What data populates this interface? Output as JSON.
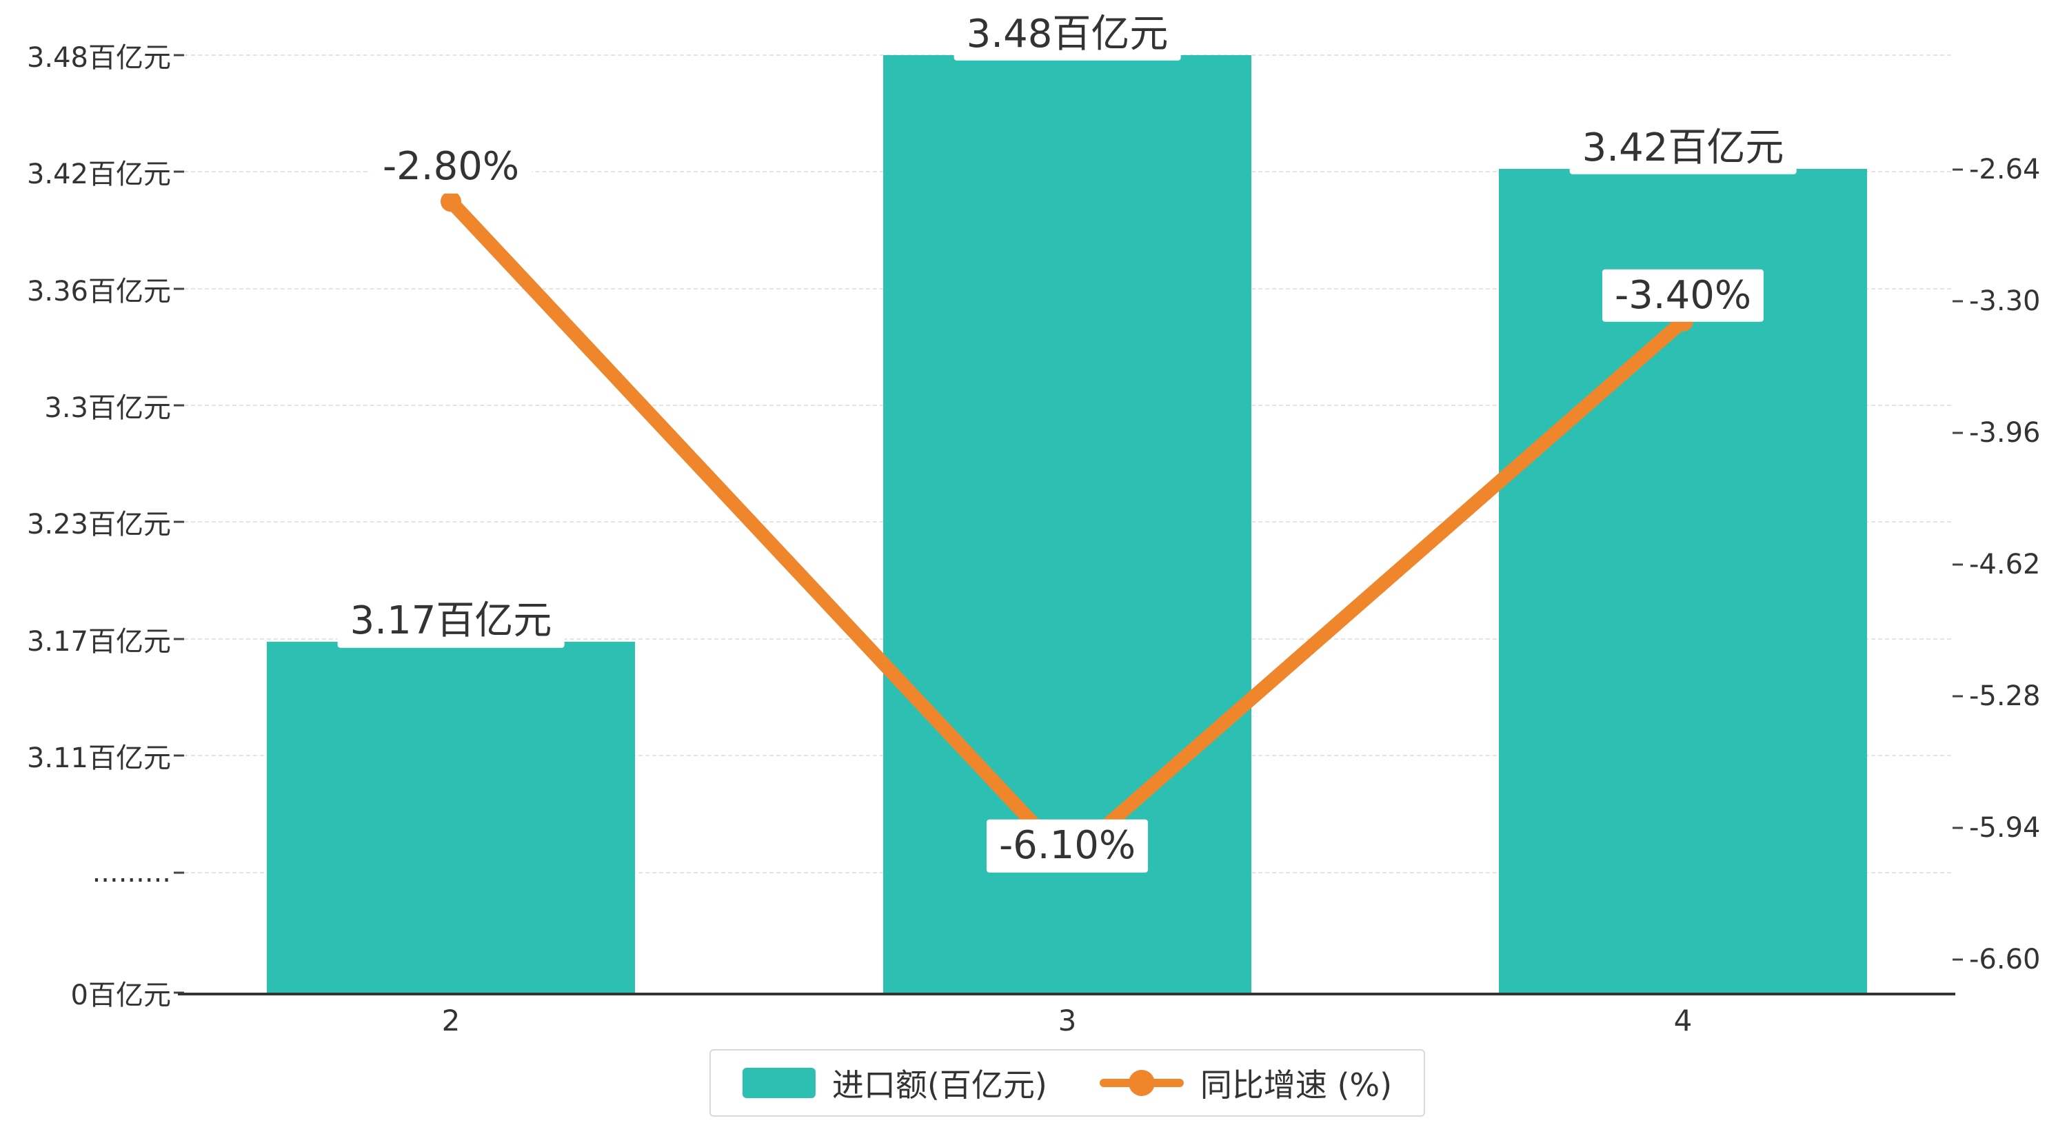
{
  "chart_data": {
    "type": "bar",
    "combo": "bar+line dual axis",
    "categories": [
      "2",
      "3",
      "4"
    ],
    "series": [
      {
        "name": "进口额(百亿元)",
        "type": "bar",
        "color": "#2ebfb3",
        "values": [
          3.17,
          3.48,
          3.42
        ],
        "labels": [
          "3.17百亿元",
          "3.48百亿元",
          "3.42百亿元"
        ]
      },
      {
        "name": "同比增速 (%)",
        "type": "line",
        "color": "#f0862b",
        "values": [
          -2.8,
          -6.1,
          -3.4
        ],
        "labels": [
          "-2.80%",
          "-6.10%",
          "-3.40%"
        ]
      }
    ],
    "left_axis": {
      "ticks": [
        "3.48百亿元",
        "3.42百亿元",
        "3.36百亿元",
        "3.3百亿元",
        "3.23百亿元",
        "3.17百亿元",
        "3.11百亿元",
        ".........",
        "0百亿元"
      ],
      "broken_axis": true,
      "range": [
        0,
        3.48
      ]
    },
    "right_axis": {
      "ticks": [
        "-2.64",
        "-3.30",
        "-3.96",
        "-4.62",
        "-5.28",
        "-5.94",
        "-6.60"
      ],
      "range": [
        -6.6,
        -2.64
      ]
    },
    "title": "",
    "legend_position": "bottom",
    "grid": true
  },
  "colors": {
    "bar": "#2ebfb3",
    "line": "#f0862b",
    "grid": "#e4e4e4",
    "axis": "#333333",
    "text": "#333333",
    "label_bg": "#ffffff",
    "legend_border": "#d9d9d9"
  }
}
